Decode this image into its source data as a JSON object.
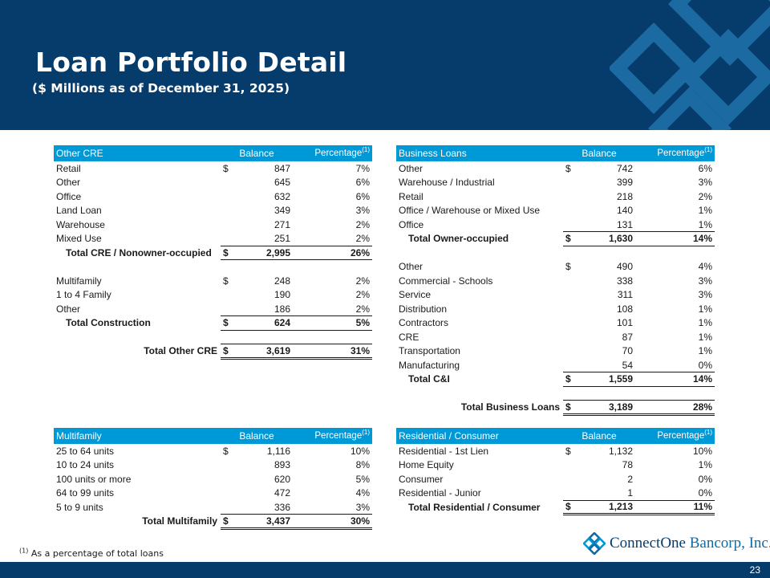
{
  "header": {
    "title": "Loan Portfolio Detail",
    "subtitle": "($ Millions as of December 31, 2025)"
  },
  "tables": {
    "other_cre": {
      "header": {
        "name": "Other CRE",
        "balance": "Balance",
        "percentage": "Percentage",
        "note": "(1)"
      },
      "rows_nonowner": [
        {
          "label": "Retail",
          "sym": "$",
          "value": "847",
          "pct": "7%"
        },
        {
          "label": "Other",
          "sym": "",
          "value": "645",
          "pct": "6%"
        },
        {
          "label": "Office",
          "sym": "",
          "value": "632",
          "pct": "6%"
        },
        {
          "label": "Land Loan",
          "sym": "",
          "value": "349",
          "pct": "3%"
        },
        {
          "label": "Warehouse",
          "sym": "",
          "value": "271",
          "pct": "2%"
        },
        {
          "label": "Mixed Use",
          "sym": "",
          "value": "251",
          "pct": "2%"
        }
      ],
      "total_nonowner": {
        "label": "Total CRE / Nonowner-occupied",
        "sym": "$",
        "value": "2,995",
        "pct": "26%"
      },
      "rows_construction": [
        {
          "label": "Multifamily",
          "sym": "$",
          "value": "248",
          "pct": "2%"
        },
        {
          "label": "1 to 4 Family",
          "sym": "",
          "value": "190",
          "pct": "2%"
        },
        {
          "label": "Other",
          "sym": "",
          "value": "186",
          "pct": "2%"
        }
      ],
      "total_construction": {
        "label": "Total Construction",
        "sym": "$",
        "value": "624",
        "pct": "5%"
      },
      "total_other_cre": {
        "label": "Total Other CRE",
        "sym": "$",
        "value": "3,619",
        "pct": "31%"
      }
    },
    "business_loans": {
      "header": {
        "name": "Business Loans",
        "balance": "Balance",
        "percentage": "Percentage",
        "note": "(1)"
      },
      "rows_owner": [
        {
          "label": "Other",
          "sym": "$",
          "value": "742",
          "pct": "6%"
        },
        {
          "label": "Warehouse / Industrial",
          "sym": "",
          "value": "399",
          "pct": "3%"
        },
        {
          "label": "Retail",
          "sym": "",
          "value": "218",
          "pct": "2%"
        },
        {
          "label": "Office / Warehouse or Mixed Use",
          "sym": "",
          "value": "140",
          "pct": "1%"
        },
        {
          "label": "Office",
          "sym": "",
          "value": "131",
          "pct": "1%"
        }
      ],
      "total_owner": {
        "label": "Total Owner-occupied",
        "sym": "$",
        "value": "1,630",
        "pct": "14%"
      },
      "rows_ci": [
        {
          "label": "Other",
          "sym": "$",
          "value": "490",
          "pct": "4%"
        },
        {
          "label": "Commercial - Schools",
          "sym": "",
          "value": "338",
          "pct": "3%"
        },
        {
          "label": "Service",
          "sym": "",
          "value": "311",
          "pct": "3%"
        },
        {
          "label": "Distribution",
          "sym": "",
          "value": "108",
          "pct": "1%"
        },
        {
          "label": "Contractors",
          "sym": "",
          "value": "101",
          "pct": "1%"
        },
        {
          "label": "CRE",
          "sym": "",
          "value": "87",
          "pct": "1%"
        },
        {
          "label": "Transportation",
          "sym": "",
          "value": "70",
          "pct": "1%"
        },
        {
          "label": "Manufacturing",
          "sym": "",
          "value": "54",
          "pct": "0%"
        }
      ],
      "total_ci": {
        "label": "Total C&I",
        "sym": "$",
        "value": "1,559",
        "pct": "14%"
      },
      "total_business": {
        "label": "Total Business Loans",
        "sym": "$",
        "value": "3,189",
        "pct": "28%"
      }
    },
    "multifamily": {
      "header": {
        "name": "Multifamily",
        "balance": "Balance",
        "percentage": "Percentage",
        "note": "(1)"
      },
      "rows": [
        {
          "label": "25 to 64 units",
          "sym": "$",
          "value": "1,116",
          "pct": "10%"
        },
        {
          "label": "10 to 24 units",
          "sym": "",
          "value": "893",
          "pct": "8%"
        },
        {
          "label": "100 units or more",
          "sym": "",
          "value": "620",
          "pct": "5%"
        },
        {
          "label": "64 to 99 units",
          "sym": "",
          "value": "472",
          "pct": "4%"
        },
        {
          "label": "5 to 9 units",
          "sym": "",
          "value": "336",
          "pct": "3%"
        }
      ],
      "total": {
        "label": "Total Multifamily",
        "sym": "$",
        "value": "3,437",
        "pct": "30%"
      }
    },
    "residential": {
      "header": {
        "name": "Residential / Consumer",
        "balance": "Balance",
        "percentage": "Percentage",
        "note": "(1)"
      },
      "rows": [
        {
          "label": "Residential - 1st Lien",
          "sym": "$",
          "value": "1,132",
          "pct": "10%"
        },
        {
          "label": "Home Equity",
          "sym": "",
          "value": "78",
          "pct": "1%"
        },
        {
          "label": "Consumer",
          "sym": "",
          "value": "2",
          "pct": "0%"
        },
        {
          "label": "Residential - Junior",
          "sym": "",
          "value": "1",
          "pct": "0%"
        }
      ],
      "total": {
        "label": "Total Residential / Consumer",
        "sym": "$",
        "value": "1,213",
        "pct": "11%"
      }
    }
  },
  "footnote": {
    "mark": "(1)",
    "text": "As a percentage of total loans"
  },
  "logo": {
    "name_part1": "ConnectOne",
    "name_part2": "Bancorp, Inc.",
    "icon": "diamond-lattice-icon"
  },
  "footer": {
    "page_number": "23"
  },
  "colors": {
    "navy": "#063c6b",
    "header_blue": "#0099d8",
    "deco_blue": "#1f6fa8"
  }
}
